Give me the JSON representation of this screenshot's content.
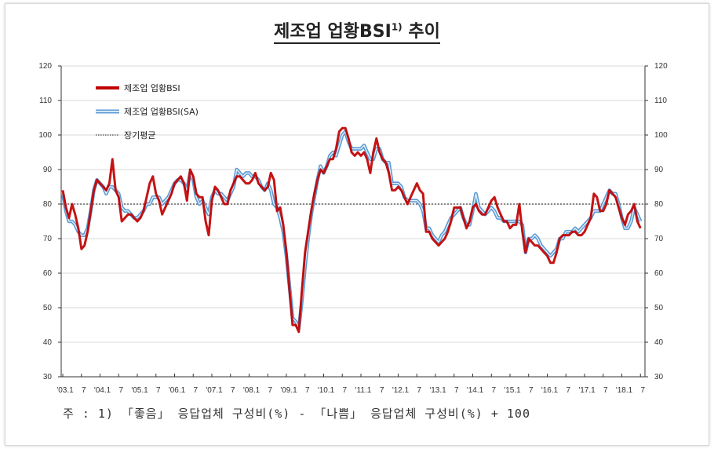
{
  "chart_data": {
    "type": "line",
    "title": "제조업 업황BSI",
    "title_sup": "1)",
    "title_suffix": "추이",
    "ylim": [
      30,
      120
    ],
    "yticks": [
      30,
      40,
      50,
      60,
      70,
      80,
      90,
      100,
      110,
      120
    ],
    "ytick_labels": [
      "30",
      "40",
      "50",
      "60",
      "70",
      "80",
      "90",
      "100",
      "110",
      "120"
    ],
    "x_start": "2003.1",
    "x_end": "2018.7",
    "xtick_labels": [
      "'03.1",
      "7",
      "'04.1",
      "7",
      "'05.1",
      "7",
      "'06.1",
      "7",
      "'07.1",
      "7",
      "'08.1",
      "7",
      "'09.1",
      "7",
      "'10.1",
      "7",
      "'11.1",
      "7",
      "'12.1",
      "7",
      "'13.1",
      "7",
      "'14.1",
      "7",
      "'15.1",
      "7",
      "'16.1",
      "7",
      "'17.1",
      "7",
      "'18.1",
      "7"
    ],
    "grid": true,
    "legend_position": "top-left",
    "long_run_average": 80,
    "series": [
      {
        "name": "제조업 업황BSI",
        "color": "#c00000",
        "values": [
          84,
          79,
          76,
          80,
          77,
          73,
          67,
          68,
          72,
          78,
          84,
          87,
          86,
          85,
          84,
          86,
          93,
          84,
          82,
          75,
          76,
          77,
          77,
          76,
          75,
          76,
          78,
          82,
          86,
          88,
          83,
          81,
          77,
          79,
          81,
          83,
          86,
          87,
          88,
          86,
          81,
          90,
          88,
          83,
          82,
          82,
          75,
          71,
          81,
          85,
          84,
          82,
          80,
          80,
          84,
          86,
          88,
          88,
          87,
          86,
          86,
          87,
          89,
          86,
          85,
          84,
          85,
          89,
          87,
          78,
          79,
          74,
          66,
          55,
          45,
          45,
          43,
          55,
          66,
          72,
          78,
          83,
          87,
          90,
          89,
          91,
          93,
          93,
          96,
          101,
          102,
          102,
          99,
          95,
          94,
          95,
          94,
          95,
          93,
          89,
          95,
          99,
          95,
          93,
          92,
          89,
          84,
          84,
          85,
          84,
          82,
          80,
          82,
          84,
          86,
          84,
          83,
          72,
          72,
          70,
          69,
          68,
          69,
          70,
          72,
          75,
          79,
          79,
          79,
          76,
          73,
          75,
          79,
          80,
          78,
          77,
          77,
          79,
          81,
          82,
          79,
          77,
          75,
          75,
          73,
          74,
          74,
          80,
          72,
          66,
          70,
          69,
          68,
          68,
          67,
          66,
          65,
          63,
          63,
          66,
          70,
          71,
          71,
          71,
          72,
          72,
          71,
          71,
          72,
          74,
          76,
          83,
          82,
          78,
          78,
          80,
          84,
          83,
          82,
          79,
          76,
          74,
          77,
          78,
          80,
          75,
          73
        ]
      },
      {
        "name": "제조업 업황BSI(SA)",
        "color": "#5b9bd5",
        "values": [
          83,
          78,
          75,
          75,
          74,
          72,
          71,
          71,
          73,
          78,
          84,
          87,
          86,
          85,
          83,
          85,
          85,
          84,
          83,
          79,
          78,
          78,
          77,
          76,
          76,
          77,
          78,
          80,
          80,
          82,
          82,
          82,
          80,
          81,
          82,
          84,
          86,
          87,
          87,
          86,
          84,
          89,
          87,
          82,
          80,
          81,
          79,
          77,
          82,
          84,
          83,
          83,
          82,
          81,
          83,
          85,
          90,
          89,
          88,
          89,
          89,
          88,
          88,
          87,
          85,
          84,
          86,
          84,
          80,
          79,
          76,
          72,
          65,
          56,
          47,
          46,
          44,
          52,
          62,
          70,
          77,
          82,
          87,
          91,
          89,
          91,
          94,
          95,
          94,
          97,
          100,
          101,
          98,
          96,
          96,
          96,
          96,
          97,
          95,
          93,
          93,
          96,
          96,
          93,
          92,
          92,
          86,
          86,
          86,
          85,
          82,
          81,
          81,
          81,
          81,
          80,
          78,
          73,
          73,
          71,
          70,
          69,
          71,
          72,
          74,
          76,
          77,
          78,
          79,
          76,
          74,
          74,
          78,
          83,
          79,
          78,
          77,
          78,
          79,
          78,
          76,
          76,
          75,
          75,
          75,
          75,
          75,
          75,
          74,
          66,
          70,
          70,
          71,
          70,
          68,
          67,
          66,
          65,
          66,
          67,
          70,
          70,
          72,
          72,
          72,
          73,
          72,
          73,
          74,
          75,
          76,
          78,
          78,
          78,
          80,
          82,
          84,
          83,
          83,
          80,
          76,
          73,
          73,
          75,
          79,
          77,
          75
        ]
      },
      {
        "name": "장기평균",
        "color": "#444444",
        "style": "dotted"
      }
    ],
    "footnote": "주 : 1) 「좋음」 응답업체 구성비(%) - 「나쁨」 응답업체 구성비(%) + 100"
  }
}
